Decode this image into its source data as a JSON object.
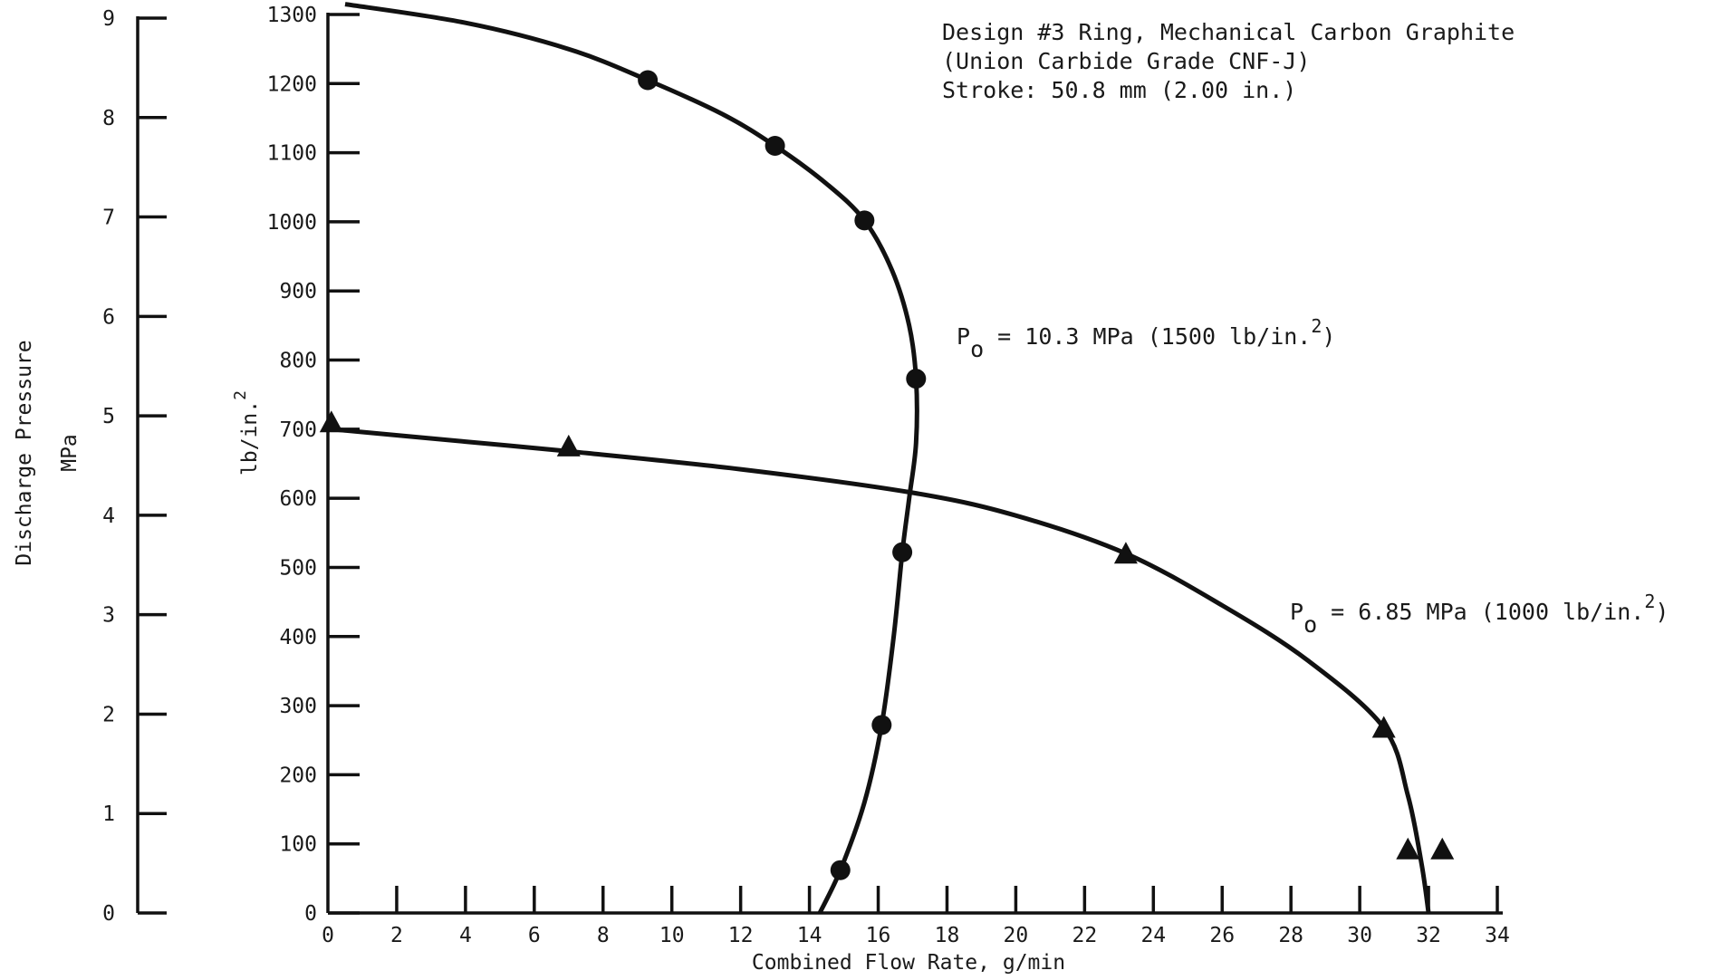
{
  "chart_data": {
    "type": "line",
    "title": "Design #3 Ring, Mechanical Carbon Graphite",
    "subtitle_lines": [
      "(Union Carbide Grade CNF-J)",
      "Stroke:  50.8 mm (2.00 in.)"
    ],
    "xlabel": "Combined Flow Rate, g/min",
    "ylabel": "lb/in.2",
    "ylabel_secondary": [
      "Discharge Pressure",
      "MPa"
    ],
    "xlim": [
      0,
      34
    ],
    "ylim": [
      0,
      1300
    ],
    "ylim_secondary": [
      0,
      9
    ],
    "x_ticks": [
      "0",
      "2",
      "4",
      "6",
      "8",
      "10",
      "12",
      "14",
      "16",
      "18",
      "20",
      "22",
      "24",
      "26",
      "28",
      "30",
      "32",
      "34"
    ],
    "y_ticks": [
      "0",
      "100",
      "200",
      "300",
      "400",
      "500",
      "600",
      "700",
      "800",
      "900",
      "1000",
      "1100",
      "1200",
      "1300"
    ],
    "y_ticks_secondary": [
      "0",
      "1",
      "2",
      "3",
      "4",
      "5",
      "6",
      "7",
      "8",
      "9"
    ],
    "grid": false,
    "series": [
      {
        "name": "Po = 10.3 MPa (1500 lb/in.2)",
        "marker": "circle",
        "points": [
          {
            "x": 9.3,
            "y": 1205
          },
          {
            "x": 13.0,
            "y": 1110
          },
          {
            "x": 15.6,
            "y": 1002
          },
          {
            "x": 17.1,
            "y": 773
          },
          {
            "x": 16.7,
            "y": 522
          },
          {
            "x": 16.1,
            "y": 272
          },
          {
            "x": 14.9,
            "y": 62
          }
        ],
        "curve": [
          {
            "x": 0.5,
            "y": 1315
          },
          {
            "x": 4,
            "y": 1288
          },
          {
            "x": 7,
            "y": 1250
          },
          {
            "x": 9.3,
            "y": 1205
          },
          {
            "x": 11.5,
            "y": 1155
          },
          {
            "x": 13.0,
            "y": 1110
          },
          {
            "x": 14.5,
            "y": 1055
          },
          {
            "x": 15.6,
            "y": 1002
          },
          {
            "x": 16.4,
            "y": 930
          },
          {
            "x": 16.9,
            "y": 850
          },
          {
            "x": 17.1,
            "y": 773
          },
          {
            "x": 17.1,
            "y": 680
          },
          {
            "x": 16.9,
            "y": 600
          },
          {
            "x": 16.7,
            "y": 522
          },
          {
            "x": 16.45,
            "y": 400
          },
          {
            "x": 16.1,
            "y": 272
          },
          {
            "x": 15.6,
            "y": 160
          },
          {
            "x": 14.9,
            "y": 62
          },
          {
            "x": 14.3,
            "y": 0
          }
        ]
      },
      {
        "name": "Po = 6.85 MPa (1000 lb/in.2)",
        "marker": "triangle",
        "points": [
          {
            "x": 0.1,
            "y": 710
          },
          {
            "x": 7.0,
            "y": 675
          },
          {
            "x": 23.2,
            "y": 520
          },
          {
            "x": 30.7,
            "y": 268
          },
          {
            "x": 31.4,
            "y": 92
          },
          {
            "x": 32.4,
            "y": 92
          }
        ],
        "curve": [
          {
            "x": 0.1,
            "y": 700
          },
          {
            "x": 4,
            "y": 682
          },
          {
            "x": 7.0,
            "y": 668
          },
          {
            "x": 12,
            "y": 642
          },
          {
            "x": 17,
            "y": 608
          },
          {
            "x": 20,
            "y": 575
          },
          {
            "x": 23.2,
            "y": 520
          },
          {
            "x": 26,
            "y": 445
          },
          {
            "x": 28.5,
            "y": 365
          },
          {
            "x": 30.7,
            "y": 268
          },
          {
            "x": 31.4,
            "y": 170
          },
          {
            "x": 31.8,
            "y": 70
          },
          {
            "x": 32.0,
            "y": 0
          }
        ]
      }
    ],
    "annotations": [
      {
        "text": "P",
        "sub": "o",
        "rest": " = 10.3 MPa (1500 lb/in.",
        "sup": "2",
        "close": ")"
      },
      {
        "text": "P",
        "sub": "o",
        "rest": " = 6.85 MPa (1000 lb/in.",
        "sup": "2",
        "close": ")"
      }
    ]
  }
}
